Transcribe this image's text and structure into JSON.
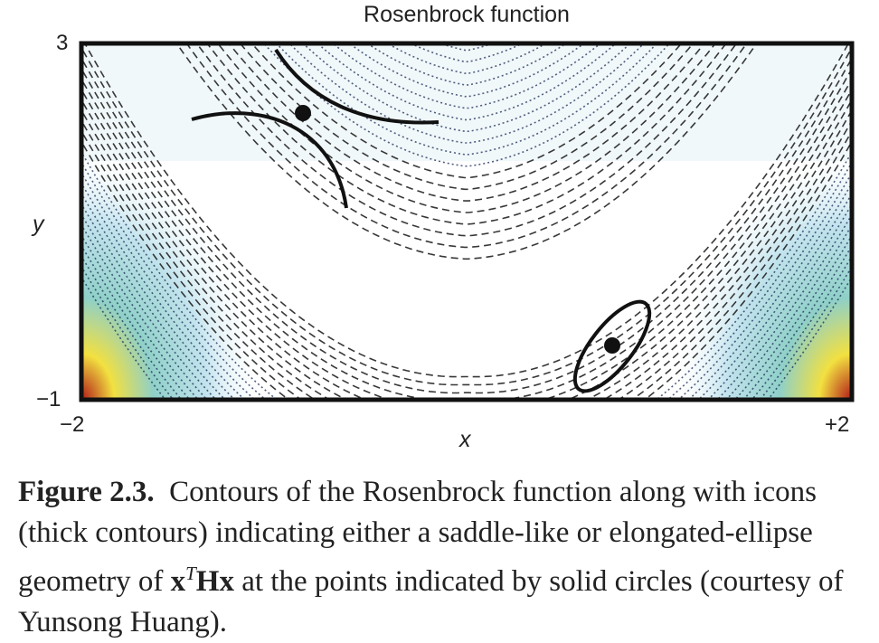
{
  "figure": {
    "title": "Rosenbrock function",
    "x_tick_min": "−2",
    "x_tick_max": "+2",
    "y_tick_min": "−1",
    "y_tick_max": "3",
    "x_label": "x",
    "y_label": "y"
  },
  "caption": {
    "label": "Figure 2.3.",
    "text_before_math": "Contours of the Rosenbrock function along with icons (thick contours) indicating either a saddle-like or elongated-ellipse geometry of",
    "math_x": "x",
    "math_sup": "T",
    "math_hx": "Hx",
    "text_after_math": "at the points indicated by solid circles (courtesy of Yunsong Huang)."
  },
  "chart_data": {
    "type": "contour",
    "function": "Rosenbrock",
    "xlim": [
      -2,
      2
    ],
    "ylim": [
      -1,
      3
    ],
    "points": [
      {
        "x": -0.85,
        "y": 2.45,
        "geometry": "saddle-like"
      },
      {
        "x": 0.75,
        "y": -0.4,
        "geometry": "elongated-ellipse"
      }
    ],
    "colors": {
      "low": "#ffffff",
      "mid": "#7ec8d8",
      "high_yellow": "#f0e040",
      "peak": "#c02020"
    }
  }
}
